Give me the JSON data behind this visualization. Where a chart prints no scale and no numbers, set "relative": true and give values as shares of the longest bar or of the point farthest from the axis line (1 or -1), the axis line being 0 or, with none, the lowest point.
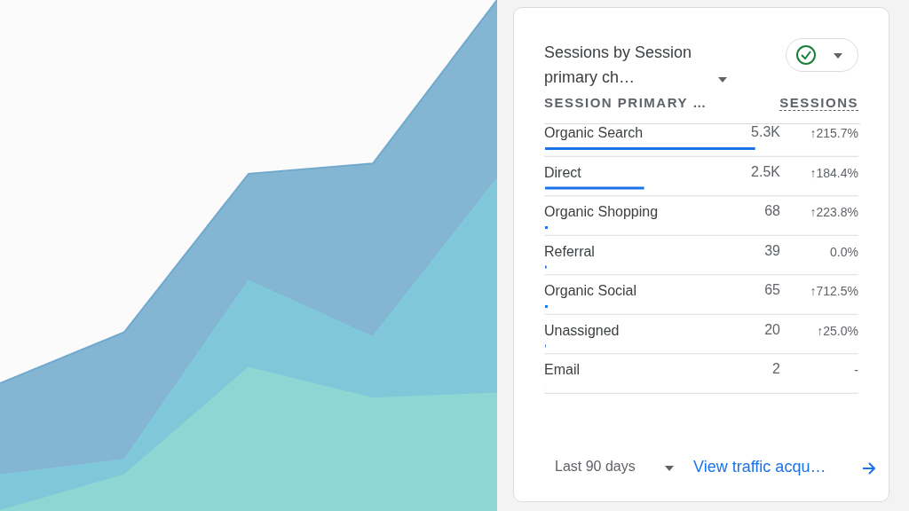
{
  "chart_data": [
    {
      "type": "area",
      "relative": true,
      "categories": [
        null,
        null,
        null,
        null,
        null
      ],
      "series": [
        {
          "color": "#6fa9cd",
          "values": [
            0.25,
            0.35,
            0.66,
            0.68,
            1
          ]
        },
        {
          "color": "#7fcadb",
          "values": [
            0.07,
            0.1,
            0.45,
            0.34,
            0.65
          ]
        },
        {
          "color": "#8fd8d2",
          "values": [
            0,
            0.07,
            0.28,
            0.22,
            0.23
          ]
        }
      ]
    },
    {
      "type": "bar",
      "orientation": "horizontal",
      "title": "Sessions by Session primary ch…",
      "ylabel": "SESSION PRIMARY …",
      "xlabel": "SESSIONS",
      "categories": [
        "Organic Search",
        "Direct",
        "Organic Shopping",
        "Referral",
        "Organic Social",
        "Unassigned",
        "Email"
      ],
      "values": [
        5300,
        2500,
        68,
        39,
        65,
        20,
        2
      ],
      "color": "#1a73e8",
      "value_labels": [
        "5.3K",
        "2.5K",
        "68",
        "39",
        "65",
        "20",
        "2"
      ],
      "annotations": [
        "↑215.7%",
        "↑184.4%",
        "↑223.8%",
        "0.0%",
        "↑712.5%",
        "↑25.0%",
        "-",
        "Last 90 days",
        "View traffic acqu…"
      ]
    }
  ]
}
